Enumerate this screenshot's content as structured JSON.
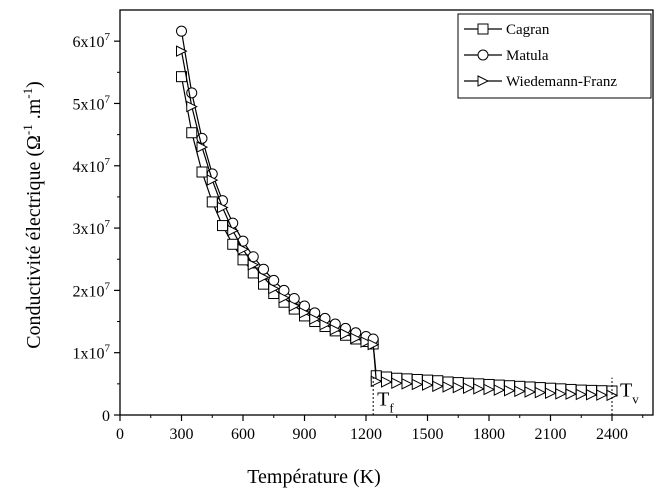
{
  "chart_data": {
    "type": "line",
    "xlabel": "Température (K)",
    "ylabel_main": "Conductivité électrique (Ω",
    "ylabel_exp1": "-1",
    "ylabel_mid": " .m",
    "ylabel_exp2": "-1",
    "ylabel_end": ")",
    "xlim": [
      0,
      2600
    ],
    "ylim": [
      0,
      65000000
    ],
    "x_ticks": [
      0,
      300,
      600,
      900,
      1200,
      1500,
      1800,
      2100,
      2400
    ],
    "x_tick_labels": [
      "0",
      "300",
      "600",
      "900",
      "1200",
      "1500",
      "1800",
      "2100",
      "2400"
    ],
    "y_ticks": [
      0,
      10000000,
      20000000,
      30000000,
      40000000,
      50000000,
      60000000
    ],
    "y_tick_labels": [
      {
        "base": "0",
        "exp": ""
      },
      {
        "base": "1x10",
        "exp": "7"
      },
      {
        "base": "2x10",
        "exp": "7"
      },
      {
        "base": "3x10",
        "exp": "7"
      },
      {
        "base": "4x10",
        "exp": "7"
      },
      {
        "base": "5x10",
        "exp": "7"
      },
      {
        "base": "6x10",
        "exp": "7"
      }
    ],
    "grid": false,
    "legend_position": "top-right",
    "series": [
      {
        "name": "Cagran",
        "marker": "square",
        "solid_x": [
          300,
          350,
          400,
          450,
          500,
          550,
          600,
          650,
          700,
          750,
          800,
          850,
          900,
          950,
          1000,
          1050,
          1100,
          1150,
          1200,
          1235
        ],
        "solid_y": [
          54300000,
          45300000,
          39000000,
          34200000,
          30400000,
          27400000,
          24900000,
          22800000,
          21000000,
          19500000,
          18100000,
          17000000,
          15900000,
          15000000,
          14200000,
          13500000,
          12800000,
          12200000,
          11800000,
          11400000
        ],
        "liquid_x": [
          1250,
          1300,
          1350,
          1400,
          1450,
          1500,
          1550,
          1600,
          1650,
          1700,
          1750,
          1800,
          1850,
          1900,
          1950,
          2000,
          2050,
          2100,
          2150,
          2200,
          2250,
          2300,
          2350,
          2400
        ],
        "liquid_y": [
          6300000,
          6100000,
          5900000,
          5800000,
          5700000,
          5600000,
          5500000,
          5300000,
          5200000,
          5100000,
          5000000,
          4900000,
          4800000,
          4700000,
          4600000,
          4500000,
          4400000,
          4300000,
          4200000,
          4100000,
          4000000,
          3950000,
          3900000,
          3850000
        ]
      },
      {
        "name": "Matula",
        "marker": "circle",
        "solid_x": [
          300,
          350,
          400,
          450,
          500,
          550,
          600,
          650,
          700,
          750,
          800,
          850,
          900,
          950,
          1000,
          1050,
          1100,
          1150,
          1200,
          1235
        ],
        "solid_y": [
          61600000,
          51700000,
          44400000,
          38700000,
          34400000,
          30800000,
          27900000,
          25400000,
          23400000,
          21600000,
          20000000,
          18700000,
          17500000,
          16400000,
          15500000,
          14600000,
          13900000,
          13200000,
          12600000,
          12200000
        ],
        "liquid_x": [],
        "liquid_y": []
      },
      {
        "name": "Wiedemann-Franz",
        "marker": "triangle-right",
        "solid_x": [
          300,
          350,
          400,
          450,
          500,
          550,
          600,
          650,
          700,
          750,
          800,
          850,
          900,
          950,
          1000,
          1050,
          1100,
          1150,
          1200,
          1235
        ],
        "solid_y": [
          58400000,
          49500000,
          43000000,
          37700000,
          33300000,
          29600000,
          26600000,
          24100000,
          22100000,
          20300000,
          18800000,
          17500000,
          16400000,
          15400000,
          14500000,
          13700000,
          13000000,
          12300000,
          11700000,
          11300000
        ],
        "liquid_x": [
          1250,
          1300,
          1350,
          1400,
          1450,
          1500,
          1550,
          1600,
          1650,
          1700,
          1750,
          1800,
          1850,
          1900,
          1950,
          2000,
          2050,
          2100,
          2150,
          2200,
          2250,
          2300,
          2350,
          2400
        ],
        "liquid_y": [
          5400000,
          5300000,
          5100000,
          5000000,
          4900000,
          4800000,
          4600000,
          4500000,
          4400000,
          4300000,
          4200000,
          4100000,
          4000000,
          3900000,
          3800000,
          3700000,
          3600000,
          3500000,
          3400000,
          3350000,
          3300000,
          3250000,
          3200000,
          3150000
        ]
      }
    ],
    "annotations": [
      {
        "text": "T",
        "sub": "f",
        "x": 1235
      },
      {
        "text": "T",
        "sub": "v",
        "x": 2400
      }
    ]
  }
}
